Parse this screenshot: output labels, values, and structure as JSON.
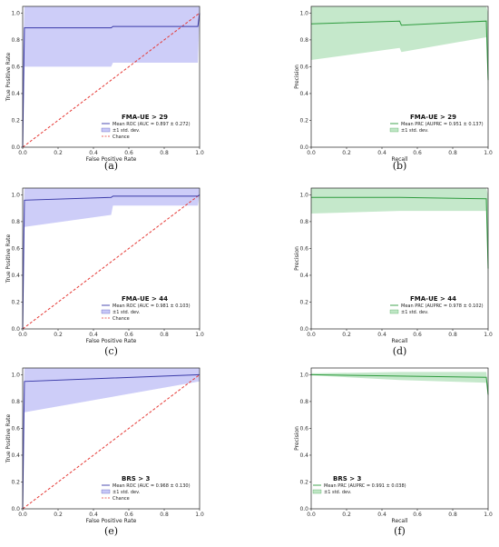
{
  "chart_data": [
    {
      "type": "line",
      "kind": "roc",
      "caption": "(a)",
      "title": "FMA-UE > 29",
      "xlabel": "False Positive Rate",
      "ylabel": "True Positive Rate",
      "xlim": [
        0,
        1
      ],
      "ylim": [
        0,
        1.05
      ],
      "xticks": [
        "0.0",
        "0.2",
        "0.4",
        "0.6",
        "0.8",
        "1.0"
      ],
      "yticks": [
        "0.0",
        "0.2",
        "0.4",
        "0.6",
        "0.8",
        "1.0"
      ],
      "color": "#3a3aa8",
      "fill": "#c8c8f7",
      "legend_loc": "lower-right",
      "series": [
        {
          "name": "Mean ROC (AUC = 0.897 ± 0.272)",
          "x": [
            0,
            0.01,
            0.5,
            0.51,
            0.99,
            1.0
          ],
          "y": [
            0,
            0.89,
            0.89,
            0.9,
            0.9,
            1.0
          ]
        },
        {
          "name": "±1 std. dev.",
          "x": [
            0,
            0.01,
            0.5,
            0.51,
            0.99,
            1.0
          ],
          "upper": [
            0.6,
            1.05,
            1.05,
            1.05,
            1.05,
            1.05
          ],
          "lower": [
            0,
            0.6,
            0.6,
            0.63,
            0.63,
            1.0
          ]
        },
        {
          "name": "Chance",
          "x": [
            0,
            1
          ],
          "y": [
            0,
            1
          ]
        }
      ]
    },
    {
      "type": "line",
      "kind": "prc",
      "caption": "(b)",
      "title": "FMA-UE > 29",
      "xlabel": "Recall",
      "ylabel": "Precision",
      "xlim": [
        0,
        1
      ],
      "ylim": [
        0,
        1.05
      ],
      "xticks": [
        "0.0",
        "0.2",
        "0.4",
        "0.6",
        "0.8",
        "1.0"
      ],
      "yticks": [
        "0.0",
        "0.2",
        "0.4",
        "0.6",
        "0.8",
        "1.0"
      ],
      "color": "#2e9b3e",
      "fill": "#bfe6c5",
      "legend_loc": "lower-right",
      "series": [
        {
          "name": "Mean PRC (AUPRC = 0.951 ± 0.137)",
          "x": [
            0,
            0.5,
            0.51,
            0.99,
            1.0
          ],
          "y": [
            0.92,
            0.94,
            0.91,
            0.94,
            0.5
          ]
        },
        {
          "name": "±1 std. dev.",
          "x": [
            0,
            0.5,
            0.51,
            0.99,
            1.0
          ],
          "upper": [
            1.05,
            1.05,
            1.05,
            1.05,
            1.0
          ],
          "lower": [
            0.65,
            0.74,
            0.71,
            0.82,
            0.4
          ]
        }
      ]
    },
    {
      "type": "line",
      "kind": "roc",
      "caption": "(c)",
      "title": "FMA-UE > 44",
      "xlabel": "False Positive Rate",
      "ylabel": "True Positive Rate",
      "xlim": [
        0,
        1
      ],
      "ylim": [
        0,
        1.05
      ],
      "xticks": [
        "0.0",
        "0.2",
        "0.4",
        "0.6",
        "0.8",
        "1.0"
      ],
      "yticks": [
        "0.0",
        "0.2",
        "0.4",
        "0.6",
        "0.8",
        "1.0"
      ],
      "color": "#3a3aa8",
      "fill": "#c8c8f7",
      "legend_loc": "lower-right",
      "series": [
        {
          "name": "Mean ROC (AUC = 0.981 ± 0.103)",
          "x": [
            0,
            0.01,
            0.5,
            0.51,
            0.99,
            1.0
          ],
          "y": [
            0,
            0.96,
            0.98,
            0.99,
            0.99,
            1.0
          ]
        },
        {
          "name": "±1 std. dev.",
          "x": [
            0,
            0.01,
            0.5,
            0.51,
            0.99,
            1.0
          ],
          "upper": [
            0.6,
            1.05,
            1.05,
            1.05,
            1.05,
            1.05
          ],
          "lower": [
            0,
            0.76,
            0.85,
            0.92,
            0.92,
            1.0
          ]
        },
        {
          "name": "Chance",
          "x": [
            0,
            1
          ],
          "y": [
            0,
            1
          ]
        }
      ]
    },
    {
      "type": "line",
      "kind": "prc",
      "caption": "(d)",
      "title": "FMA-UE > 44",
      "xlabel": "Recall",
      "ylabel": "Precision",
      "xlim": [
        0,
        1
      ],
      "ylim": [
        0,
        1.05
      ],
      "xticks": [
        "0.0",
        "0.2",
        "0.4",
        "0.6",
        "0.8",
        "1.0"
      ],
      "yticks": [
        "0.0",
        "0.2",
        "0.4",
        "0.6",
        "0.8",
        "1.0"
      ],
      "color": "#2e9b3e",
      "fill": "#bfe6c5",
      "legend_loc": "lower-right",
      "series": [
        {
          "name": "Mean PRC (AUPRC = 0.978 ± 0.102)",
          "x": [
            0,
            0.5,
            0.99,
            1.0
          ],
          "y": [
            0.98,
            0.98,
            0.97,
            0.45
          ]
        },
        {
          "name": "±1 std. dev.",
          "x": [
            0,
            0.5,
            0.99,
            1.0
          ],
          "upper": [
            1.05,
            1.05,
            1.05,
            1.0
          ],
          "lower": [
            0.86,
            0.88,
            0.88,
            0.35
          ]
        }
      ]
    },
    {
      "type": "line",
      "kind": "roc",
      "caption": "(e)",
      "title": "BRS > 3",
      "xlabel": "False Positive Rate",
      "ylabel": "True Positive Rate",
      "xlim": [
        0,
        1
      ],
      "ylim": [
        0,
        1.05
      ],
      "xticks": [
        "0.0",
        "0.2",
        "0.4",
        "0.6",
        "0.8",
        "1.0"
      ],
      "yticks": [
        "0.0",
        "0.2",
        "0.4",
        "0.6",
        "0.8",
        "1.0"
      ],
      "color": "#3a3aa8",
      "fill": "#c8c8f7",
      "legend_loc": "lower-right",
      "series": [
        {
          "name": "Mean ROC (AUC = 0.968 ± 0.130)",
          "x": [
            0,
            0.01,
            1.0
          ],
          "y": [
            0,
            0.95,
            1.0
          ]
        },
        {
          "name": "±1 std. dev.",
          "x": [
            0,
            0.01,
            1.0
          ],
          "upper": [
            0.6,
            1.05,
            1.05
          ],
          "lower": [
            0,
            0.72,
            0.95
          ]
        },
        {
          "name": "Chance",
          "x": [
            0,
            1
          ],
          "y": [
            0,
            1
          ]
        }
      ]
    },
    {
      "type": "line",
      "kind": "prc",
      "caption": "(f)",
      "title": "BRS > 3",
      "xlabel": "Recall",
      "ylabel": "Precision",
      "xlim": [
        0,
        1
      ],
      "ylim": [
        0,
        1.05
      ],
      "xticks": [
        "0.0",
        "0.2",
        "0.4",
        "0.6",
        "0.8",
        "1.0"
      ],
      "yticks": [
        "0.0",
        "0.2",
        "0.4",
        "0.6",
        "0.8",
        "1.0"
      ],
      "color": "#2e9b3e",
      "fill": "#bfe6c5",
      "legend_loc": "lower-left",
      "series": [
        {
          "name": "Mean PRC (AUPRC = 0.991 ± 0.038)",
          "x": [
            0,
            0.5,
            0.99,
            1.0
          ],
          "y": [
            1.0,
            0.99,
            0.98,
            0.85
          ]
        },
        {
          "name": "±1 std. dev.",
          "x": [
            0,
            0.5,
            0.99,
            1.0
          ],
          "upper": [
            1.01,
            1.02,
            1.02,
            0.9
          ],
          "lower": [
            0.995,
            0.96,
            0.94,
            0.82
          ]
        }
      ]
    }
  ]
}
